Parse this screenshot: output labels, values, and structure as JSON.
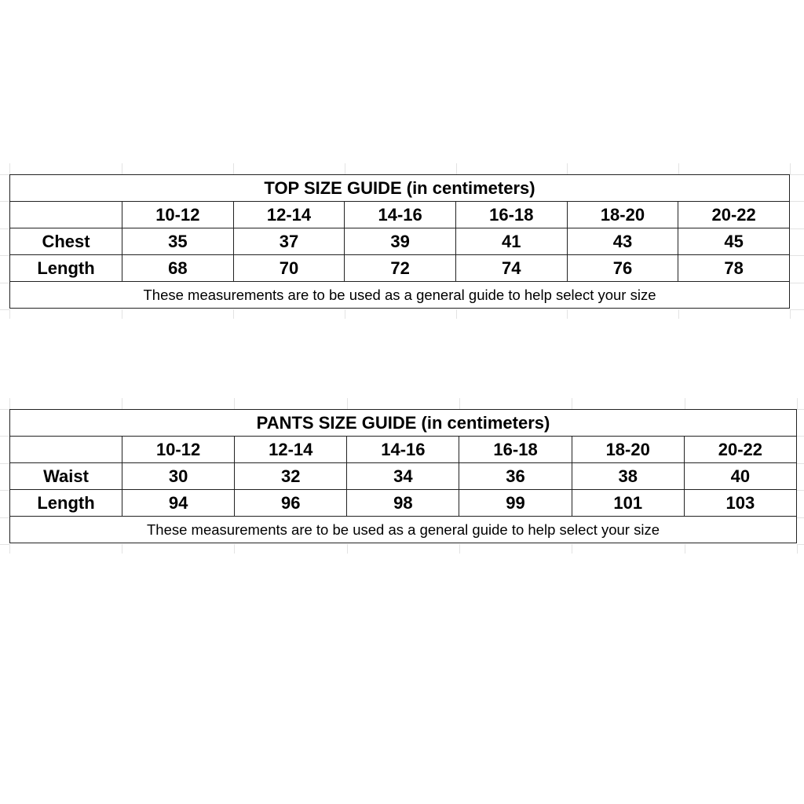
{
  "tables": [
    {
      "title": "TOP SIZE GUIDE (in centimeters)",
      "sizes": [
        "10-12",
        "12-14",
        "14-16",
        "16-18",
        "18-20",
        "20-22"
      ],
      "rows": [
        {
          "label": "Chest",
          "values": [
            "35",
            "37",
            "39",
            "41",
            "43",
            "45"
          ]
        },
        {
          "label": "Length",
          "values": [
            "68",
            "70",
            "72",
            "74",
            "76",
            "78"
          ]
        }
      ],
      "note": "These measurements are to be used as a general guide to help select your size"
    },
    {
      "title": "PANTS SIZE GUIDE (in centimeters)",
      "sizes": [
        "10-12",
        "12-14",
        "14-16",
        "16-18",
        "18-20",
        "20-22"
      ],
      "rows": [
        {
          "label": "Waist",
          "values": [
            "30",
            "32",
            "34",
            "36",
            "38",
            "40"
          ]
        },
        {
          "label": "Length",
          "values": [
            "94",
            "96",
            "98",
            "99",
            "101",
            "103"
          ]
        }
      ],
      "note": "These measurements are to be used as a general guide to help select your size"
    }
  ]
}
